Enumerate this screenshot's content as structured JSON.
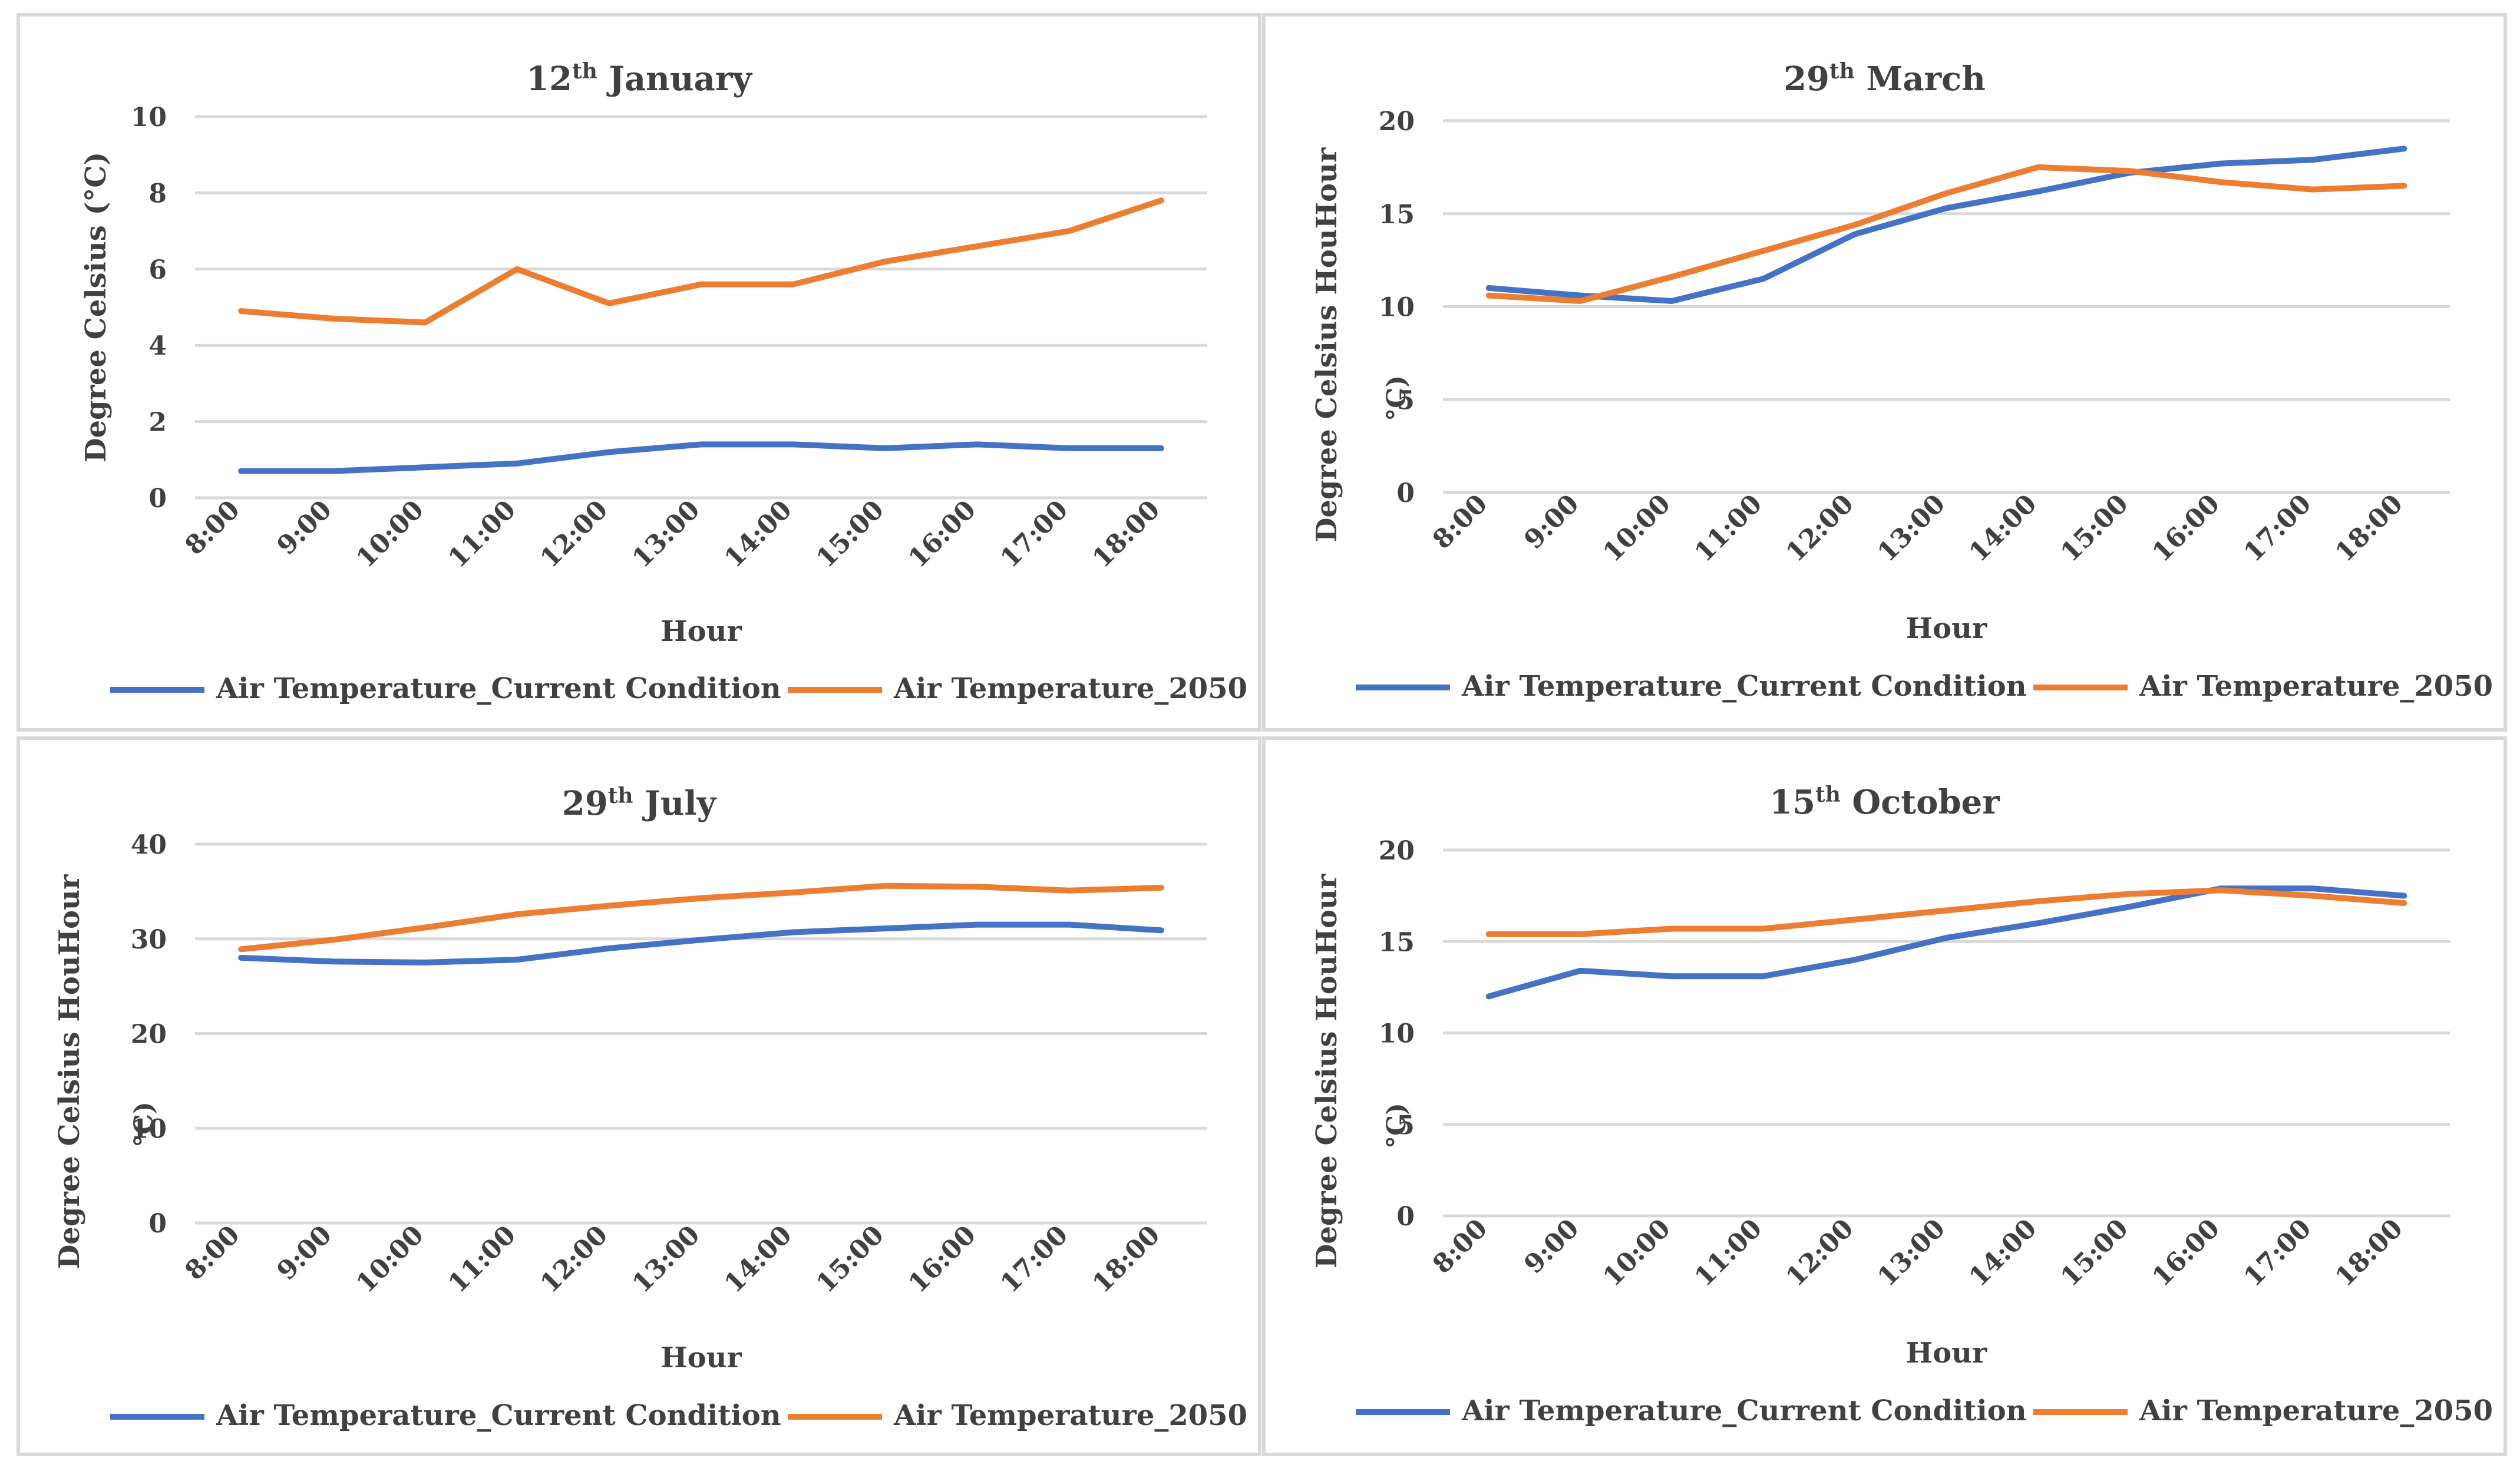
{
  "chart_data": [
    {
      "type": "line",
      "title_main": "12",
      "title_sup": "th",
      "title_rest": " January",
      "xlabel": "Hour",
      "ylabel": "Degree Celsius (°C)",
      "ylim": [
        0,
        10
      ],
      "yticks": [
        0,
        2,
        4,
        6,
        8,
        10
      ],
      "categories": [
        "8:00",
        "9:00",
        "10:00",
        "11:00",
        "12:00",
        "13:00",
        "14:00",
        "15:00",
        "16:00",
        "17:00",
        "18:00"
      ],
      "series": [
        {
          "name": "Air Temperature_Current Condition",
          "color": "#4472C4",
          "values": [
            0.7,
            0.7,
            0.8,
            0.9,
            1.2,
            1.4,
            1.4,
            1.3,
            1.4,
            1.3,
            1.3
          ]
        },
        {
          "name": "Air Temperature_2050",
          "color": "#ED7D31",
          "values": [
            4.9,
            4.7,
            4.6,
            6.0,
            5.1,
            5.6,
            5.6,
            6.2,
            6.6,
            7.0,
            7.8
          ]
        }
      ],
      "legend_position": "bottom"
    },
    {
      "type": "line",
      "title_main": "29",
      "title_sup": "th",
      "title_rest": " March",
      "xlabel": "Hour",
      "ylabel": "Degree Celsius HouHour",
      "ylabel_extra": "°C)",
      "ylim": [
        0,
        20
      ],
      "yticks": [
        0,
        5,
        10,
        15,
        20
      ],
      "categories": [
        "8:00",
        "9:00",
        "10:00",
        "11:00",
        "12:00",
        "13:00",
        "14:00",
        "15:00",
        "16:00",
        "17:00",
        "18:00"
      ],
      "series": [
        {
          "name": "Air Temperature_Current Condition",
          "color": "#4472C4",
          "values": [
            11.0,
            10.6,
            10.3,
            11.5,
            13.9,
            15.3,
            16.2,
            17.2,
            17.7,
            17.9,
            18.5
          ]
        },
        {
          "name": "Air Temperature_2050",
          "color": "#ED7D31",
          "values": [
            10.6,
            10.3,
            11.6,
            13.0,
            14.4,
            16.1,
            17.5,
            17.3,
            16.7,
            16.3,
            16.5
          ]
        }
      ],
      "legend_position": "bottom"
    },
    {
      "type": "line",
      "title_main": "29",
      "title_sup": "th",
      "title_rest": " July",
      "xlabel": "Hour",
      "ylabel": "Degree Celsius HouHour",
      "ylabel_extra": "°C)",
      "ylim": [
        0,
        40
      ],
      "yticks": [
        0,
        10,
        20,
        30,
        40
      ],
      "categories": [
        "8:00",
        "9:00",
        "10:00",
        "11:00",
        "12:00",
        "13:00",
        "14:00",
        "15:00",
        "16:00",
        "17:00",
        "18:00"
      ],
      "series": [
        {
          "name": "Air Temperature_Current Condition",
          "color": "#4472C4",
          "values": [
            28.0,
            27.6,
            27.5,
            27.8,
            29.0,
            29.9,
            30.7,
            31.1,
            31.5,
            31.5,
            30.9
          ]
        },
        {
          "name": "Air Temperature_2050",
          "color": "#ED7D31",
          "values": [
            28.9,
            29.9,
            31.2,
            32.6,
            33.5,
            34.3,
            34.9,
            35.6,
            35.5,
            35.1,
            35.4
          ]
        }
      ],
      "legend_position": "bottom"
    },
    {
      "type": "line",
      "title_main": "15",
      "title_sup": "th",
      "title_rest": " October",
      "xlabel": "Hour",
      "ylabel": "Degree Celsius HouHour",
      "ylabel_extra": "°C)",
      "ylim": [
        0,
        20
      ],
      "yticks": [
        0,
        5,
        10,
        15,
        20
      ],
      "categories": [
        "8:00",
        "9:00",
        "10:00",
        "11:00",
        "12:00",
        "13:00",
        "14:00",
        "15:00",
        "16:00",
        "17:00",
        "18:00"
      ],
      "series": [
        {
          "name": "Air Temperature_Current Condition",
          "color": "#4472C4",
          "values": [
            12.0,
            13.4,
            13.1,
            13.1,
            14.0,
            15.2,
            16.0,
            16.9,
            17.9,
            17.9,
            17.5
          ]
        },
        {
          "name": "Air Temperature_2050",
          "color": "#ED7D31",
          "values": [
            15.4,
            15.4,
            15.7,
            15.7,
            16.2,
            16.7,
            17.2,
            17.6,
            17.8,
            17.5,
            17.1
          ]
        }
      ],
      "legend_position": "bottom"
    }
  ]
}
